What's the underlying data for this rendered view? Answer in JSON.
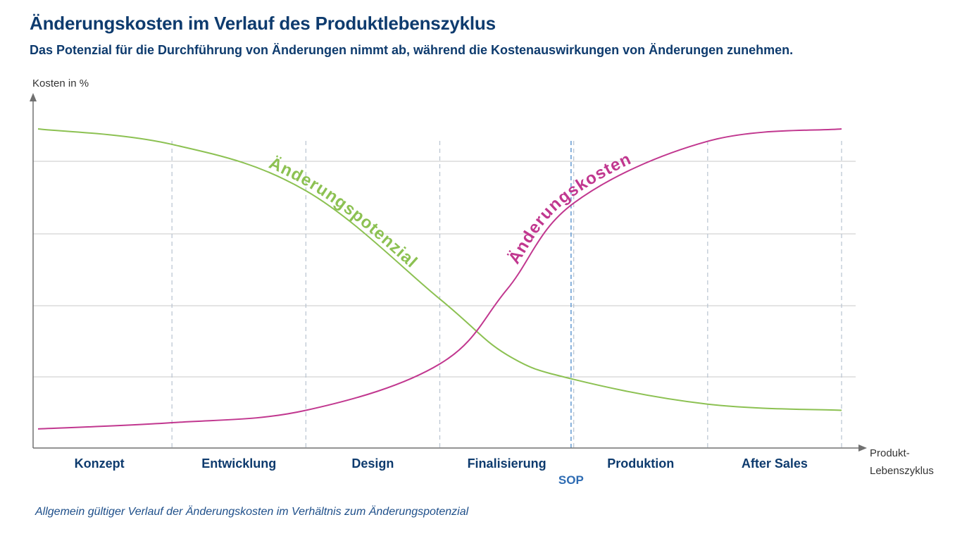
{
  "header": {
    "title": "Änderungskosten im Verlauf des Produktlebenszyklus",
    "subtitle": "Das Potenzial für die Durchführung von Änderungen nimmt ab, während die Kostenauswirkungen von Änderungen zunehmen."
  },
  "caption": "Allgemein gültiger Verlauf der Änderungskosten im Verhältnis zum Änderungspotenzial",
  "colors": {
    "title": "#0e3b6e",
    "potential": "#8cc152",
    "cost": "#c1378f",
    "sop": "#6b9fd4",
    "grid": "#c8c8c8",
    "phase_divider": "#b8c3d0",
    "axis": "#707070"
  },
  "chart_data": {
    "type": "line",
    "ylabel": "Kosten in %",
    "xlabel": "Produkt-\nLebenszyklus",
    "xlabel_lines": [
      "Produkt-",
      "Lebenszyklus"
    ],
    "categories": [
      "Konzept",
      "Entwicklung",
      "Design",
      "Finalisierung",
      "Produktion",
      "After Sales"
    ],
    "marker": {
      "label": "SOP",
      "x": 3.98
    },
    "x": [
      0,
      1,
      2,
      3,
      3.5,
      4,
      5,
      6
    ],
    "xlim": [
      0,
      6
    ],
    "ylim": [
      0,
      100
    ],
    "grid": true,
    "series": [
      {
        "name": "Änderungspotenzial",
        "values": [
          100,
          95,
          80,
          45,
          27,
          19,
          11,
          9
        ]
      },
      {
        "name": "Änderungskosten",
        "values": [
          3,
          5,
          9,
          24,
          48,
          76,
          96,
          100
        ]
      }
    ]
  }
}
